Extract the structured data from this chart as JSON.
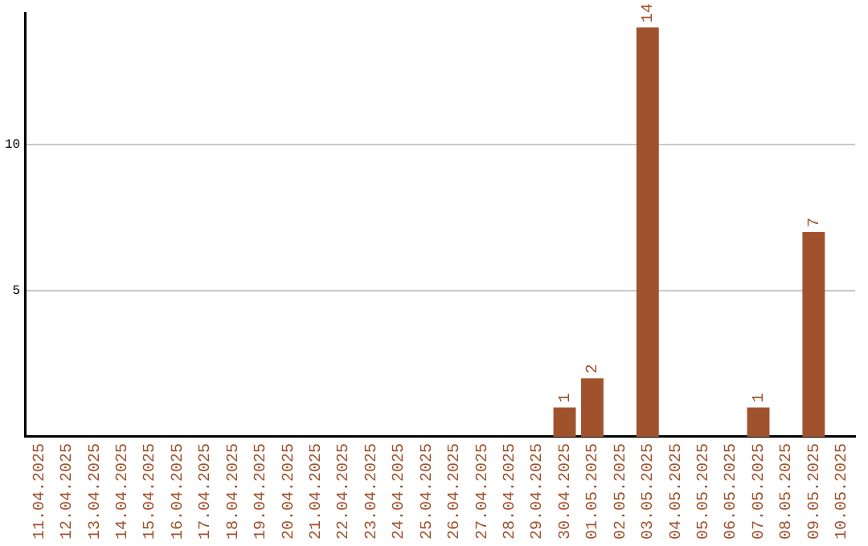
{
  "chart_data": {
    "type": "bar",
    "categories": [
      "11.04.2025",
      "12.04.2025",
      "13.04.2025",
      "14.04.2025",
      "15.04.2025",
      "16.04.2025",
      "17.04.2025",
      "18.04.2025",
      "19.04.2025",
      "20.04.2025",
      "21.04.2025",
      "22.04.2025",
      "23.04.2025",
      "24.04.2025",
      "25.04.2025",
      "26.04.2025",
      "27.04.2025",
      "28.04.2025",
      "29.04.2025",
      "30.04.2025",
      "01.05.2025",
      "02.05.2025",
      "03.05.2025",
      "04.05.2025",
      "05.05.2025",
      "06.05.2025",
      "07.05.2025",
      "08.05.2025",
      "09.05.2025",
      "10.05.2025"
    ],
    "values": [
      0,
      0,
      0,
      0,
      0,
      0,
      0,
      0,
      0,
      0,
      0,
      0,
      0,
      0,
      0,
      0,
      0,
      0,
      0,
      1,
      2,
      0,
      14,
      0,
      0,
      0,
      1,
      0,
      7,
      0
    ],
    "value_labels": [
      null,
      null,
      null,
      null,
      null,
      null,
      null,
      null,
      null,
      null,
      null,
      null,
      null,
      null,
      null,
      null,
      null,
      null,
      null,
      "1",
      "2",
      null,
      "14",
      null,
      null,
      null,
      "1",
      null,
      "7",
      null
    ],
    "color": "#a0522d",
    "ylim": [
      0,
      14.5
    ],
    "yticks": [
      5,
      10
    ],
    "grid": "y",
    "legend": false
  }
}
